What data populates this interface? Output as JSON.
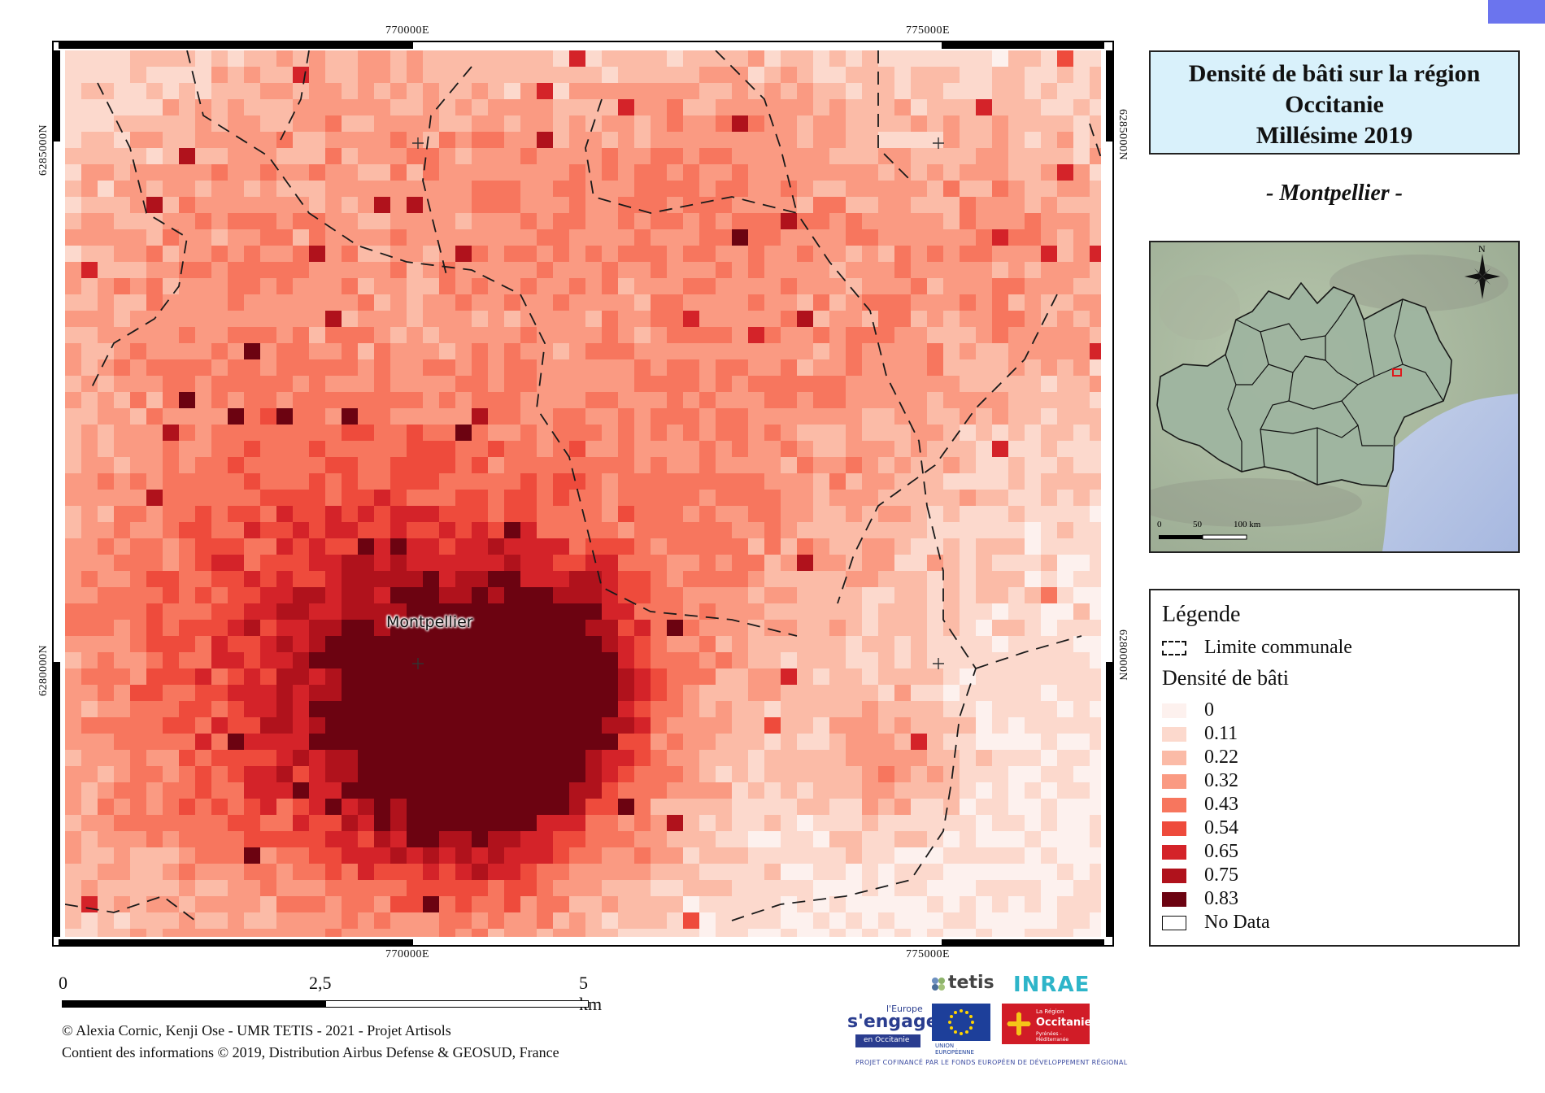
{
  "map": {
    "coords_top": [
      "770000E",
      "775000E"
    ],
    "coords_bottom": [
      "770000E",
      "775000E"
    ],
    "coords_left": [
      "6285000N",
      "6280000N"
    ],
    "coords_right": [
      "6285000N",
      "6280000N"
    ],
    "city_label": "Montpellier",
    "hot_color": "#e8423b"
  },
  "title": {
    "line1": "Densité de bâti sur la région",
    "line2": "Occitanie",
    "line3": "Millésime 2019"
  },
  "subtitle": "- Montpellier -",
  "inset": {
    "north_label": "N",
    "scale_labels": [
      "0",
      "50",
      "100 km"
    ]
  },
  "legend": {
    "title": "Légende",
    "boundary_label": "Limite communale",
    "density_title": "Densité de bâti",
    "classes": [
      {
        "label": "0",
        "color": "#fdf1ee"
      },
      {
        "label": "0.11",
        "color": "#fcd9cd"
      },
      {
        "label": "0.22",
        "color": "#fbbba7"
      },
      {
        "label": "0.32",
        "color": "#fa9a82"
      },
      {
        "label": "0.43",
        "color": "#f7765e"
      },
      {
        "label": "0.54",
        "color": "#ee4b3c"
      },
      {
        "label": "0.65",
        "color": "#d42329"
      },
      {
        "label": "0.75",
        "color": "#b0121c"
      },
      {
        "label": "0.83",
        "color": "#6c0311"
      }
    ],
    "nodata_label": "No Data"
  },
  "scalebar": {
    "labels": [
      "0",
      "2,5",
      "5 km"
    ]
  },
  "credits": {
    "line1": "© Alexia Cornic, Kenji Ose - UMR TETIS - 2021 - Projet Artisols",
    "line2": "Contient des informations ©  2019, Distribution Airbus Defense & GEOSUD, France"
  },
  "logos": {
    "tetis": "tetis",
    "inrae": "INRAE",
    "europe_top": "l'Europe",
    "europe_main": "s'engage",
    "europe_sub": "en Occitanie",
    "eu_caption": "UNION EUROPÉENNE",
    "region_small": "La Région",
    "region_main": "Occitanie",
    "region_sub": "Pyrénées - Méditerranée",
    "project_line": "PROJET COFINANCÉ PAR LE FONDS EUROPÉEN DE DÉVELOPPEMENT RÉGIONAL"
  }
}
